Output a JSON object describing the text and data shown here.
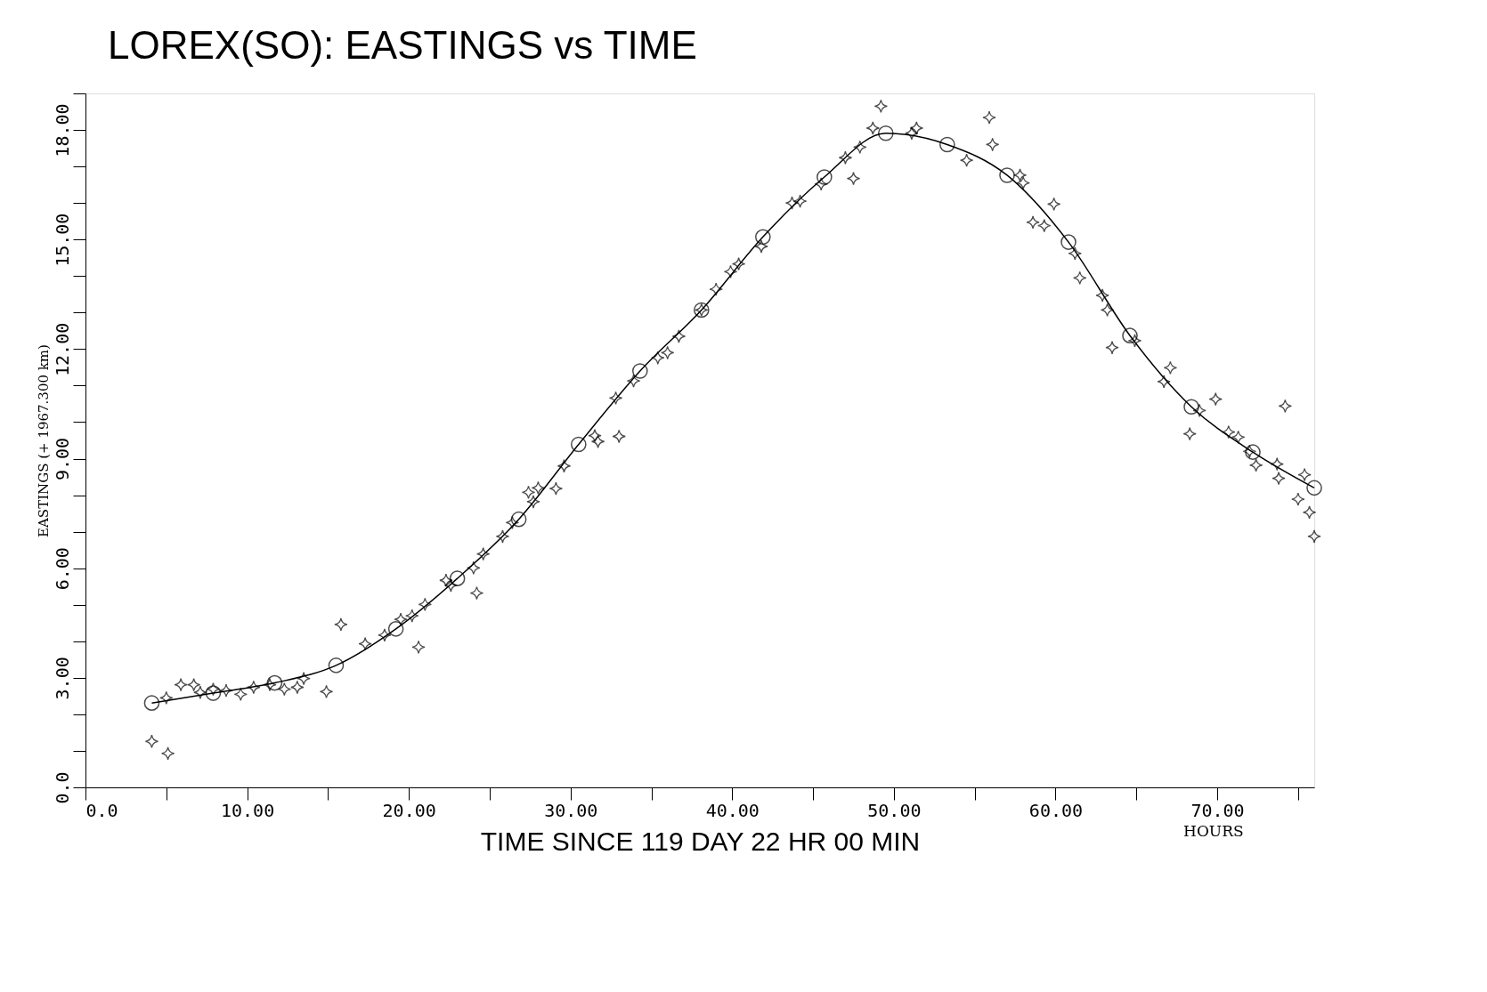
{
  "chart_data": {
    "type": "scatter",
    "title": "LOREX(SO): EASTINGS vs TIME",
    "xlabel": "TIME SINCE 119 DAY 22 HR 00 MIN",
    "ylabel": "EASTINGS (+ 1967.300 km)",
    "annotations": [
      "HOURS"
    ],
    "xlim": [
      0,
      76
    ],
    "ylim": [
      0,
      19
    ],
    "xticks": [
      {
        "value": 0,
        "label": "0.0"
      },
      {
        "value": 5,
        "label": null
      },
      {
        "value": 10,
        "label": "10.00"
      },
      {
        "value": 15,
        "label": null
      },
      {
        "value": 20,
        "label": "20.00"
      },
      {
        "value": 25,
        "label": null
      },
      {
        "value": 30,
        "label": "30.00"
      },
      {
        "value": 35,
        "label": null
      },
      {
        "value": 40,
        "label": "40.00"
      },
      {
        "value": 45,
        "label": null
      },
      {
        "value": 50,
        "label": "50.00"
      },
      {
        "value": 55,
        "label": null
      },
      {
        "value": 60,
        "label": "60.00"
      },
      {
        "value": 65,
        "label": null
      },
      {
        "value": 70,
        "label": "70.00"
      },
      {
        "value": 75,
        "label": null
      }
    ],
    "yticks": [
      {
        "value": 0,
        "label": "0.0"
      },
      {
        "value": 1,
        "label": null
      },
      {
        "value": 2,
        "label": null
      },
      {
        "value": 3,
        "label": "3.00"
      },
      {
        "value": 4,
        "label": null
      },
      {
        "value": 5,
        "label": null
      },
      {
        "value": 6,
        "label": "6.00"
      },
      {
        "value": 7,
        "label": null
      },
      {
        "value": 8,
        "label": null
      },
      {
        "value": 9,
        "label": "9.00"
      },
      {
        "value": 10,
        "label": null
      },
      {
        "value": 11,
        "label": null
      },
      {
        "value": 12,
        "label": "12.00"
      },
      {
        "value": 13,
        "label": null
      },
      {
        "value": 14,
        "label": null
      },
      {
        "value": 15,
        "label": "15.00"
      },
      {
        "value": 16,
        "label": null
      },
      {
        "value": 17,
        "label": null
      },
      {
        "value": 18,
        "label": "18.00"
      },
      {
        "value": 19,
        "label": null
      }
    ],
    "grid": false,
    "series": [
      {
        "marker": "star",
        "color": "#000000",
        "x": [
          4.1,
          5.1,
          5.0,
          5.9,
          6.7,
          7.1,
          7.9,
          8.7,
          9.6,
          10.4,
          11.4,
          12.3,
          13.1,
          13.5,
          14.9,
          15.8,
          17.3,
          18.5,
          19.5,
          20.2,
          20.6,
          21.0,
          22.3,
          22.6,
          24.0,
          24.2,
          24.6,
          25.8,
          26.4,
          27.4,
          27.7,
          28.0,
          29.1,
          29.6,
          31.5,
          31.7,
          33.0,
          32.8,
          33.9,
          35.4,
          36.0,
          36.7,
          38.1,
          39.0,
          39.9,
          40.4,
          41.8,
          43.7,
          44.2,
          45.5,
          47.0,
          47.5,
          47.9,
          48.7,
          49.2,
          51.1,
          51.4,
          54.5,
          55.9,
          56.1,
          57.8,
          58.0,
          58.6,
          59.3,
          59.9,
          61.2,
          61.5,
          62.9,
          63.2,
          63.5,
          64.9,
          66.7,
          67.1,
          68.3,
          68.9,
          69.9,
          70.7,
          71.3,
          72.0,
          72.4,
          73.7,
          73.8,
          74.2,
          75.0,
          75.4,
          75.7,
          76.0
        ],
        "values": [
          1.26,
          0.93,
          2.45,
          2.81,
          2.81,
          2.6,
          2.69,
          2.65,
          2.55,
          2.74,
          2.81,
          2.69,
          2.74,
          2.98,
          2.62,
          4.46,
          3.93,
          4.17,
          4.6,
          4.7,
          3.84,
          5.01,
          5.67,
          5.53,
          6.01,
          5.32,
          6.39,
          6.87,
          7.25,
          8.08,
          7.82,
          8.2,
          8.18,
          8.8,
          9.63,
          9.47,
          9.61,
          10.66,
          11.13,
          11.76,
          11.9,
          12.35,
          13.07,
          13.64,
          14.12,
          14.33,
          14.81,
          16.0,
          16.05,
          16.52,
          17.24,
          16.67,
          17.53,
          18.05,
          18.65,
          17.91,
          18.05,
          17.17,
          18.34,
          17.6,
          16.76,
          16.55,
          15.47,
          15.38,
          15.97,
          14.62,
          13.95,
          13.47,
          13.07,
          12.04,
          12.23,
          11.11,
          11.49,
          9.68,
          10.32,
          10.63,
          9.73,
          9.59,
          9.2,
          8.82,
          8.85,
          8.46,
          10.44,
          7.89,
          8.56,
          7.53,
          6.87
        ]
      },
      {
        "type": "line",
        "marker": "circle",
        "color": "#000000",
        "x": [
          4.1,
          7.9,
          11.7,
          15.5,
          19.2,
          23.0,
          26.8,
          30.5,
          34.3,
          38.1,
          41.9,
          45.7,
          49.5,
          53.3,
          57.0,
          60.8,
          64.6,
          68.4,
          72.2,
          76.0
        ],
        "values": [
          2.31,
          2.58,
          2.86,
          3.34,
          4.34,
          5.72,
          7.34,
          9.39,
          11.4,
          13.07,
          15.07,
          16.71,
          17.91,
          17.6,
          16.76,
          14.93,
          12.37,
          10.42,
          9.18,
          8.2
        ]
      }
    ]
  }
}
